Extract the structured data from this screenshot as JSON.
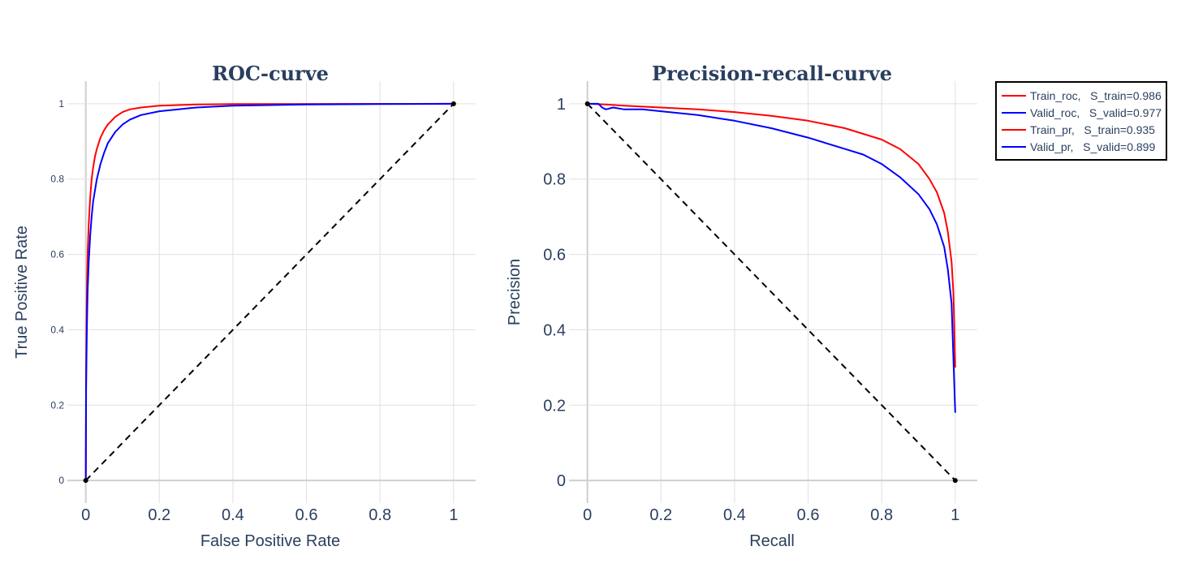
{
  "chart_data": [
    {
      "type": "line",
      "title": "ROC-curve",
      "xlabel": "False Positive Rate",
      "ylabel": "True Positive Rate",
      "xlim": [
        -0.05,
        1.06
      ],
      "ylim": [
        -0.06,
        1.06
      ],
      "xticks": [
        "0",
        "0.2",
        "0.4",
        "0.6",
        "0.8",
        "1"
      ],
      "xtick_values": [
        0,
        0.2,
        0.4,
        0.6,
        0.8,
        1
      ],
      "yticks": [
        "0",
        "0.2",
        "0.4",
        "0.6",
        "0.8",
        "1"
      ],
      "ytick_values": [
        0,
        0.2,
        0.4,
        0.6,
        0.8,
        1
      ],
      "grid": true,
      "series": [
        {
          "name": "Train_roc,   S_train=0.986",
          "color": "#ff0000",
          "x": [
            0,
            0.001,
            0.003,
            0.005,
            0.008,
            0.012,
            0.016,
            0.02,
            0.025,
            0.03,
            0.04,
            0.05,
            0.06,
            0.07,
            0.08,
            0.1,
            0.12,
            0.15,
            0.2,
            0.3,
            0.4,
            0.6,
            0.8,
            1.0
          ],
          "y": [
            0,
            0.3,
            0.5,
            0.6,
            0.68,
            0.75,
            0.8,
            0.83,
            0.86,
            0.88,
            0.91,
            0.93,
            0.945,
            0.955,
            0.965,
            0.978,
            0.985,
            0.99,
            0.995,
            0.998,
            0.999,
            0.9995,
            0.9998,
            1.0
          ]
        },
        {
          "name": "Valid_roc,   S_valid=0.977",
          "color": "#0000ff",
          "x": [
            0,
            0.001,
            0.003,
            0.005,
            0.008,
            0.012,
            0.016,
            0.02,
            0.025,
            0.03,
            0.04,
            0.05,
            0.06,
            0.07,
            0.08,
            0.1,
            0.12,
            0.15,
            0.2,
            0.3,
            0.4,
            0.6,
            0.8,
            1.0
          ],
          "y": [
            0,
            0.25,
            0.4,
            0.5,
            0.58,
            0.65,
            0.7,
            0.74,
            0.77,
            0.8,
            0.84,
            0.87,
            0.895,
            0.91,
            0.925,
            0.945,
            0.958,
            0.97,
            0.98,
            0.99,
            0.995,
            0.998,
            0.999,
            1.0
          ]
        },
        {
          "name": "",
          "color": "#000000",
          "dash": true,
          "markers": true,
          "x": [
            0,
            1
          ],
          "y": [
            0,
            1
          ]
        }
      ]
    },
    {
      "type": "line",
      "title": "Precision-recall-curve",
      "xlabel": "Recall",
      "ylabel": "Precision",
      "xlim": [
        -0.05,
        1.06
      ],
      "ylim": [
        -0.06,
        1.06
      ],
      "xticks": [
        "0",
        "0.2",
        "0.4",
        "0.6",
        "0.8",
        "1"
      ],
      "xtick_values": [
        0,
        0.2,
        0.4,
        0.6,
        0.8,
        1
      ],
      "yticks": [
        "0",
        "0.2",
        "0.4",
        "0.6",
        "0.8",
        "1"
      ],
      "ytick_values": [
        0,
        0.2,
        0.4,
        0.6,
        0.8,
        1
      ],
      "grid": true,
      "series": [
        {
          "name": "Train_pr,   S_train=0.935",
          "color": "#ff0000",
          "x": [
            0,
            0.05,
            0.1,
            0.2,
            0.3,
            0.4,
            0.5,
            0.6,
            0.7,
            0.8,
            0.85,
            0.9,
            0.93,
            0.95,
            0.97,
            0.98,
            0.99,
            0.995,
            1.0
          ],
          "y": [
            1.0,
            0.998,
            0.995,
            0.99,
            0.985,
            0.978,
            0.968,
            0.955,
            0.935,
            0.905,
            0.88,
            0.84,
            0.8,
            0.765,
            0.71,
            0.66,
            0.58,
            0.5,
            0.3
          ]
        },
        {
          "name": "Valid_pr,   S_valid=0.899",
          "color": "#0000ff",
          "x": [
            0,
            0.03,
            0.04,
            0.05,
            0.07,
            0.1,
            0.15,
            0.2,
            0.3,
            0.4,
            0.5,
            0.6,
            0.7,
            0.75,
            0.8,
            0.85,
            0.9,
            0.93,
            0.95,
            0.97,
            0.98,
            0.99,
            1.0
          ],
          "y": [
            1.0,
            1.0,
            0.99,
            0.985,
            0.99,
            0.985,
            0.985,
            0.98,
            0.97,
            0.955,
            0.935,
            0.91,
            0.88,
            0.865,
            0.84,
            0.805,
            0.76,
            0.72,
            0.68,
            0.62,
            0.56,
            0.47,
            0.18
          ]
        },
        {
          "name": "",
          "color": "#000000",
          "dash": true,
          "markers": true,
          "x": [
            0,
            1
          ],
          "y": [
            1,
            0
          ]
        }
      ]
    }
  ],
  "legend": {
    "placement": "top-right",
    "entries": [
      {
        "label": "Train_roc,   S_train=0.986",
        "color": "#ff0000"
      },
      {
        "label": "Valid_roc,   S_valid=0.977",
        "color": "#0000ff"
      },
      {
        "label": "Train_pr,   S_train=0.935",
        "color": "#ff0000"
      },
      {
        "label": "Valid_pr,   S_valid=0.899",
        "color": "#0000ff"
      }
    ]
  }
}
